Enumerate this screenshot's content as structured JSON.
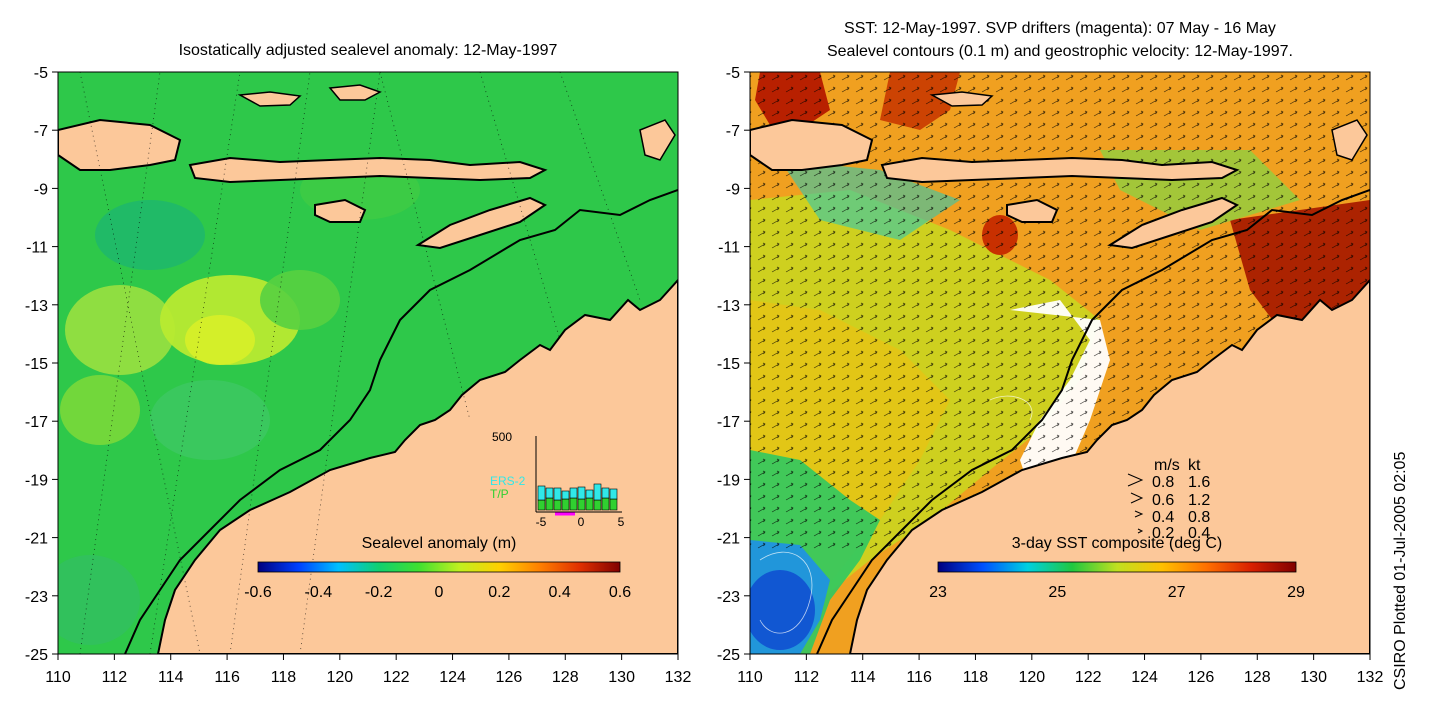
{
  "left_panel": {
    "title": "Isostatically adjusted sealevel anomaly: 12-May-1997",
    "colorbar": {
      "label": "Sealevel anomaly (m)",
      "ticks": [
        "-0.6",
        "-0.4",
        "-0.2",
        "0",
        "0.2",
        "0.4",
        "0.6"
      ],
      "colors": [
        "#00007f",
        "#0040ff",
        "#00c0ff",
        "#10d070",
        "#40e030",
        "#c0f020",
        "#ffd000",
        "#ff8000",
        "#e03000",
        "#800000"
      ]
    },
    "inset": {
      "ymax_label": "500",
      "series": [
        "ERS-2",
        "T/P"
      ],
      "series_colors": [
        "#30e8e8",
        "#30d030"
      ],
      "x_ticks": [
        "-5",
        "0",
        "5"
      ]
    }
  },
  "right_panel": {
    "title_line1": "SST: 12-May-1997. SVP drifters (magenta): 07 May - 16 May",
    "title_line2": "Sealevel contours (0.1 m) and geostrophic velocity: 12-May-1997.",
    "colorbar": {
      "label": "3-day SST composite (deg C)",
      "ticks": [
        "23",
        "25",
        "27",
        "29"
      ],
      "colors": [
        "#00007f",
        "#0050ff",
        "#00d0e0",
        "#20c840",
        "#c0e020",
        "#ffc000",
        "#ff7000",
        "#d82000",
        "#800000"
      ]
    },
    "velocity_key": {
      "header_ms": "m/s",
      "header_kt": "kt",
      "rows": [
        {
          "ms": "0.8",
          "kt": "1.6"
        },
        {
          "ms": "0.6",
          "kt": "1.2"
        },
        {
          "ms": "0.4",
          "kt": "0.8"
        },
        {
          "ms": "0.2",
          "kt": "0.4"
        }
      ]
    }
  },
  "axes": {
    "lon_labels": [
      "110",
      "112",
      "114",
      "116",
      "118",
      "120",
      "122",
      "124",
      "126",
      "128",
      "130",
      "132"
    ],
    "lat_labels": [
      "-5",
      "-7",
      "-9",
      "-11",
      "-13",
      "-15",
      "-17",
      "-19",
      "-21",
      "-23",
      "-25"
    ]
  },
  "colors": {
    "land": "#fcc89a",
    "left_sea": "#2ec84a",
    "right_sea": "#f0a020"
  },
  "footer": {
    "stamp": "CSIRO Plotted 01-Jul-2005 02:05"
  }
}
